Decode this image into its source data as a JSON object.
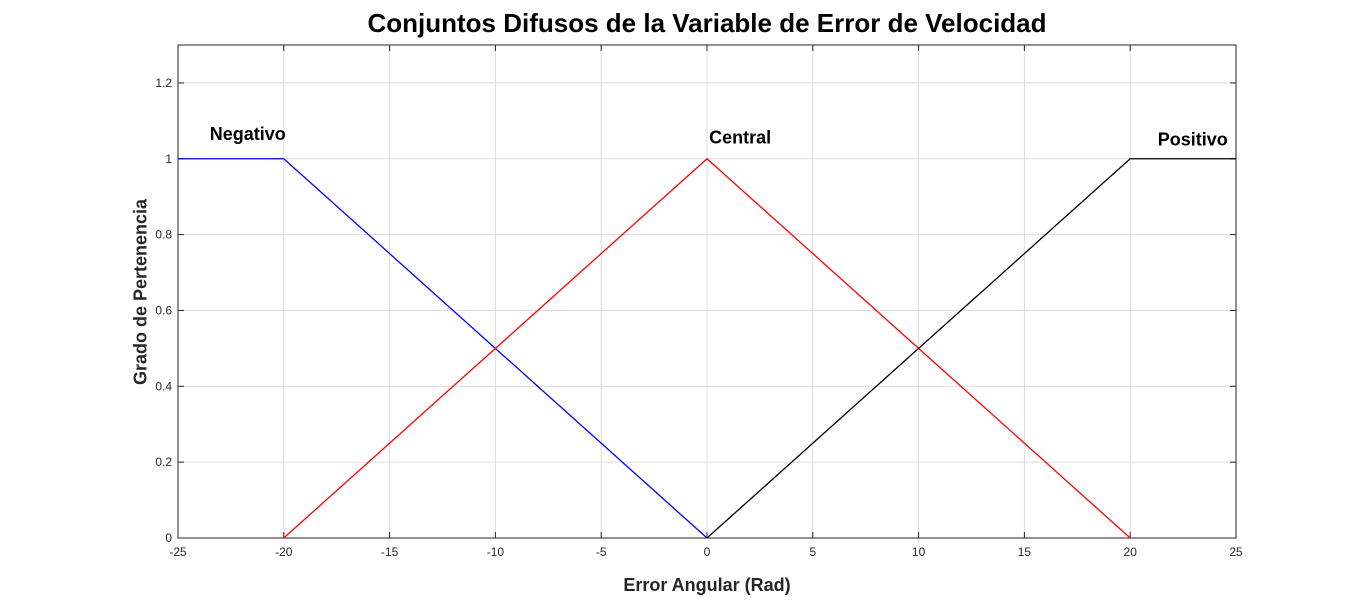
{
  "chart_data": {
    "type": "line",
    "title": "Conjuntos Difusos de la Variable de Error de Velocidad",
    "xlabel": "Error Angular (Rad)",
    "ylabel": "Grado de Pertenencia",
    "xlim": [
      -25,
      25
    ],
    "ylim": [
      0,
      1.3
    ],
    "xticks": [
      -25,
      -20,
      -15,
      -10,
      -5,
      0,
      5,
      10,
      15,
      20,
      25
    ],
    "yticks": [
      0,
      0.2,
      0.4,
      0.6,
      0.8,
      1,
      1.2
    ],
    "grid": true,
    "series": [
      {
        "name": "Negativo",
        "color": "#0000ff",
        "x": [
          -25,
          -20,
          0
        ],
        "y": [
          1,
          1,
          0
        ],
        "label_at": {
          "x": -23.5,
          "y": 1.05
        }
      },
      {
        "name": "Central",
        "color": "#ff0000",
        "x": [
          -20,
          0,
          20
        ],
        "y": [
          0,
          1,
          0
        ],
        "label_at": {
          "x": 0.1,
          "y": 1.04
        }
      },
      {
        "name": "Positivo",
        "color": "#000000",
        "x": [
          0,
          20,
          25
        ],
        "y": [
          0,
          1,
          1
        ],
        "label_at": {
          "x": 21.3,
          "y": 1.035
        }
      }
    ]
  }
}
